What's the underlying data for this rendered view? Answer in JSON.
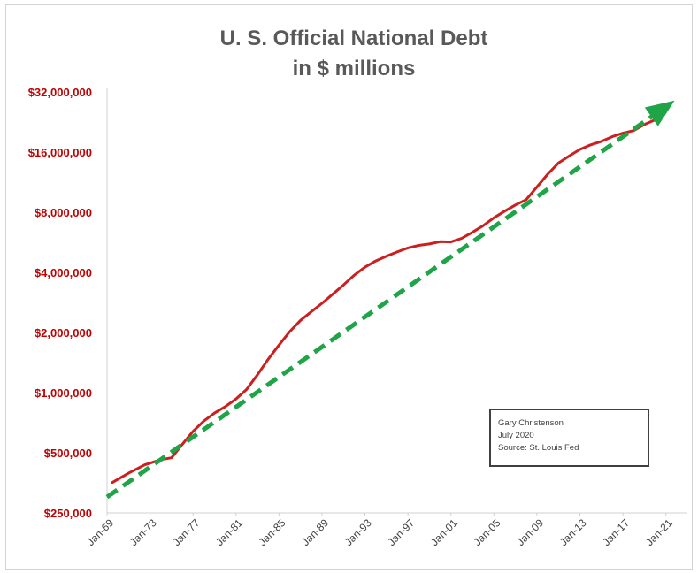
{
  "chart_data": {
    "type": "line",
    "title_lines": [
      "U. S. Official National Debt",
      "in $ millions"
    ],
    "y_scale": "log2",
    "ylim": [
      250000,
      32000000
    ],
    "y_ticks": [
      {
        "value": 250000,
        "label": "$250,000"
      },
      {
        "value": 500000,
        "label": "$500,000"
      },
      {
        "value": 1000000,
        "label": "$1,000,000"
      },
      {
        "value": 2000000,
        "label": "$2,000,000"
      },
      {
        "value": 4000000,
        "label": "$4,000,000"
      },
      {
        "value": 8000000,
        "label": "$8,000,000"
      },
      {
        "value": 16000000,
        "label": "$16,000,000"
      },
      {
        "value": 32000000,
        "label": "$32,000,000"
      }
    ],
    "xlim": [
      "1969-01",
      "2023-01"
    ],
    "x_ticks": [
      {
        "value": "1969-01",
        "label": "Jan-69"
      },
      {
        "value": "1973-01",
        "label": "Jan-73"
      },
      {
        "value": "1977-01",
        "label": "Jan-77"
      },
      {
        "value": "1981-01",
        "label": "Jan-81"
      },
      {
        "value": "1985-01",
        "label": "Jan-85"
      },
      {
        "value": "1989-01",
        "label": "Jan-89"
      },
      {
        "value": "1993-01",
        "label": "Jan-93"
      },
      {
        "value": "1997-01",
        "label": "Jan-97"
      },
      {
        "value": "2001-01",
        "label": "Jan-01"
      },
      {
        "value": "2005-01",
        "label": "Jan-05"
      },
      {
        "value": "2009-01",
        "label": "Jan-09"
      },
      {
        "value": "2013-01",
        "label": "Jan-13"
      },
      {
        "value": "2017-01",
        "label": "Jan-17"
      },
      {
        "value": "2021-01",
        "label": "Jan-21"
      }
    ],
    "grid": false,
    "legend": "none",
    "series": [
      {
        "color": "#cc1f1f",
        "style": "solid",
        "points": [
          [
            "1969-07",
            355000
          ],
          [
            "1971-01",
            395000
          ],
          [
            "1972-07",
            435000
          ],
          [
            "1974-01",
            462000
          ],
          [
            "1975-01",
            472000
          ],
          [
            "1976-01",
            550000
          ],
          [
            "1977-01",
            640000
          ],
          [
            "1978-01",
            720000
          ],
          [
            "1979-01",
            790000
          ],
          [
            "1980-01",
            850000
          ],
          [
            "1981-01",
            930000
          ],
          [
            "1982-01",
            1040000
          ],
          [
            "1983-01",
            1230000
          ],
          [
            "1984-01",
            1470000
          ],
          [
            "1985-01",
            1730000
          ],
          [
            "1986-01",
            2020000
          ],
          [
            "1987-01",
            2300000
          ],
          [
            "1988-01",
            2540000
          ],
          [
            "1989-01",
            2800000
          ],
          [
            "1990-01",
            3110000
          ],
          [
            "1991-01",
            3460000
          ],
          [
            "1992-01",
            3870000
          ],
          [
            "1993-01",
            4250000
          ],
          [
            "1994-01",
            4560000
          ],
          [
            "1995-01",
            4820000
          ],
          [
            "1996-01",
            5060000
          ],
          [
            "1997-01",
            5300000
          ],
          [
            "1998-01",
            5460000
          ],
          [
            "1999-01",
            5550000
          ],
          [
            "2000-01",
            5700000
          ],
          [
            "2001-01",
            5680000
          ],
          [
            "2002-01",
            5920000
          ],
          [
            "2003-01",
            6350000
          ],
          [
            "2004-01",
            6850000
          ],
          [
            "2005-01",
            7500000
          ],
          [
            "2006-01",
            8100000
          ],
          [
            "2007-01",
            8700000
          ],
          [
            "2008-01",
            9250000
          ],
          [
            "2009-01",
            10700000
          ],
          [
            "2010-01",
            12400000
          ],
          [
            "2011-01",
            14100000
          ],
          [
            "2012-01",
            15300000
          ],
          [
            "2013-01",
            16500000
          ],
          [
            "2014-01",
            17400000
          ],
          [
            "2015-01",
            18100000
          ],
          [
            "2016-01",
            19100000
          ],
          [
            "2017-01",
            19900000
          ],
          [
            "2018-01",
            20500000
          ],
          [
            "2019-01",
            22000000
          ],
          [
            "2020-01",
            23200000
          ],
          [
            "2020-03",
            23800000
          ],
          [
            "2020-06",
            26400000
          ]
        ]
      },
      {
        "color": "#1fa447",
        "style": "dashed",
        "arrow": true,
        "points": [
          [
            "1969-01",
            300000
          ],
          [
            "2021-01",
            27000000
          ]
        ]
      }
    ]
  },
  "annotation": {
    "lines": [
      "Gary Christenson",
      "July 2020",
      "Source: St. Louis Fed"
    ]
  }
}
